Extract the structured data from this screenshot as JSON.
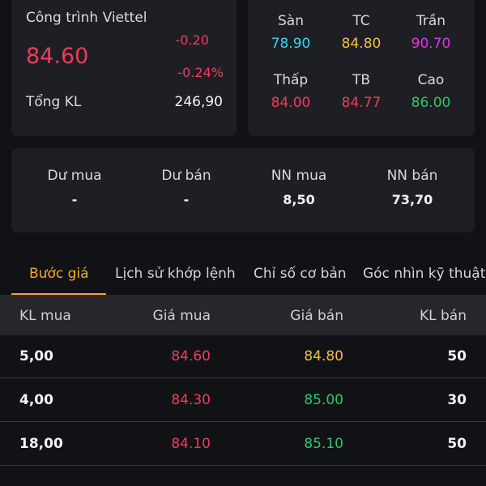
{
  "colors": {
    "background": "#111216",
    "card": "#1e1f24",
    "red": "#f23a5c",
    "yellow": "#f3bf3a",
    "green": "#2fc56a",
    "cyan": "#33d4f0",
    "magenta": "#e433e8",
    "accent": "#f5a623"
  },
  "stock": {
    "name": "Công trình Viettel",
    "price": "84.60",
    "change": "-0.20",
    "change_pct": "-0.24%",
    "volume_label": "Tổng KL",
    "volume_value": "246,90"
  },
  "prices": {
    "floor_label": "Sàn",
    "floor_value": "78.90",
    "ref_label": "TC",
    "ref_value": "84.80",
    "ceiling_label": "Trần",
    "ceiling_value": "90.70",
    "low_label": "Thấp",
    "low_value": "84.00",
    "avg_label": "TB",
    "avg_value": "84.77",
    "high_label": "Cao",
    "high_value": "86.00"
  },
  "foreign": {
    "excess_buy_label": "Dư mua",
    "excess_buy_value": "-",
    "excess_sell_label": "Dư bán",
    "excess_sell_value": "-",
    "nn_buy_label": "NN mua",
    "nn_buy_value": "8,50",
    "nn_sell_label": "NN bán",
    "nn_sell_value": "73,70"
  },
  "tabs": [
    {
      "label": "Bước giá"
    },
    {
      "label": "Lịch sử khớp lệnh"
    },
    {
      "label": "Chỉ số cơ bản"
    },
    {
      "label": "Góc nhìn kỹ thuật"
    }
  ],
  "order_book": {
    "headers": {
      "bid_vol": "KL mua",
      "bid_price": "Giá mua",
      "ask_price": "Giá bán",
      "ask_vol": "KL bán"
    },
    "rows": [
      {
        "bid_vol": "5,00",
        "bid_price": "84.60",
        "ask_price": "84.80",
        "ask_vol": "50"
      },
      {
        "bid_vol": "4,00",
        "bid_price": "84.30",
        "ask_price": "85.00",
        "ask_vol": "30"
      },
      {
        "bid_vol": "18,00",
        "bid_price": "84.10",
        "ask_price": "85.10",
        "ask_vol": "50"
      }
    ]
  }
}
